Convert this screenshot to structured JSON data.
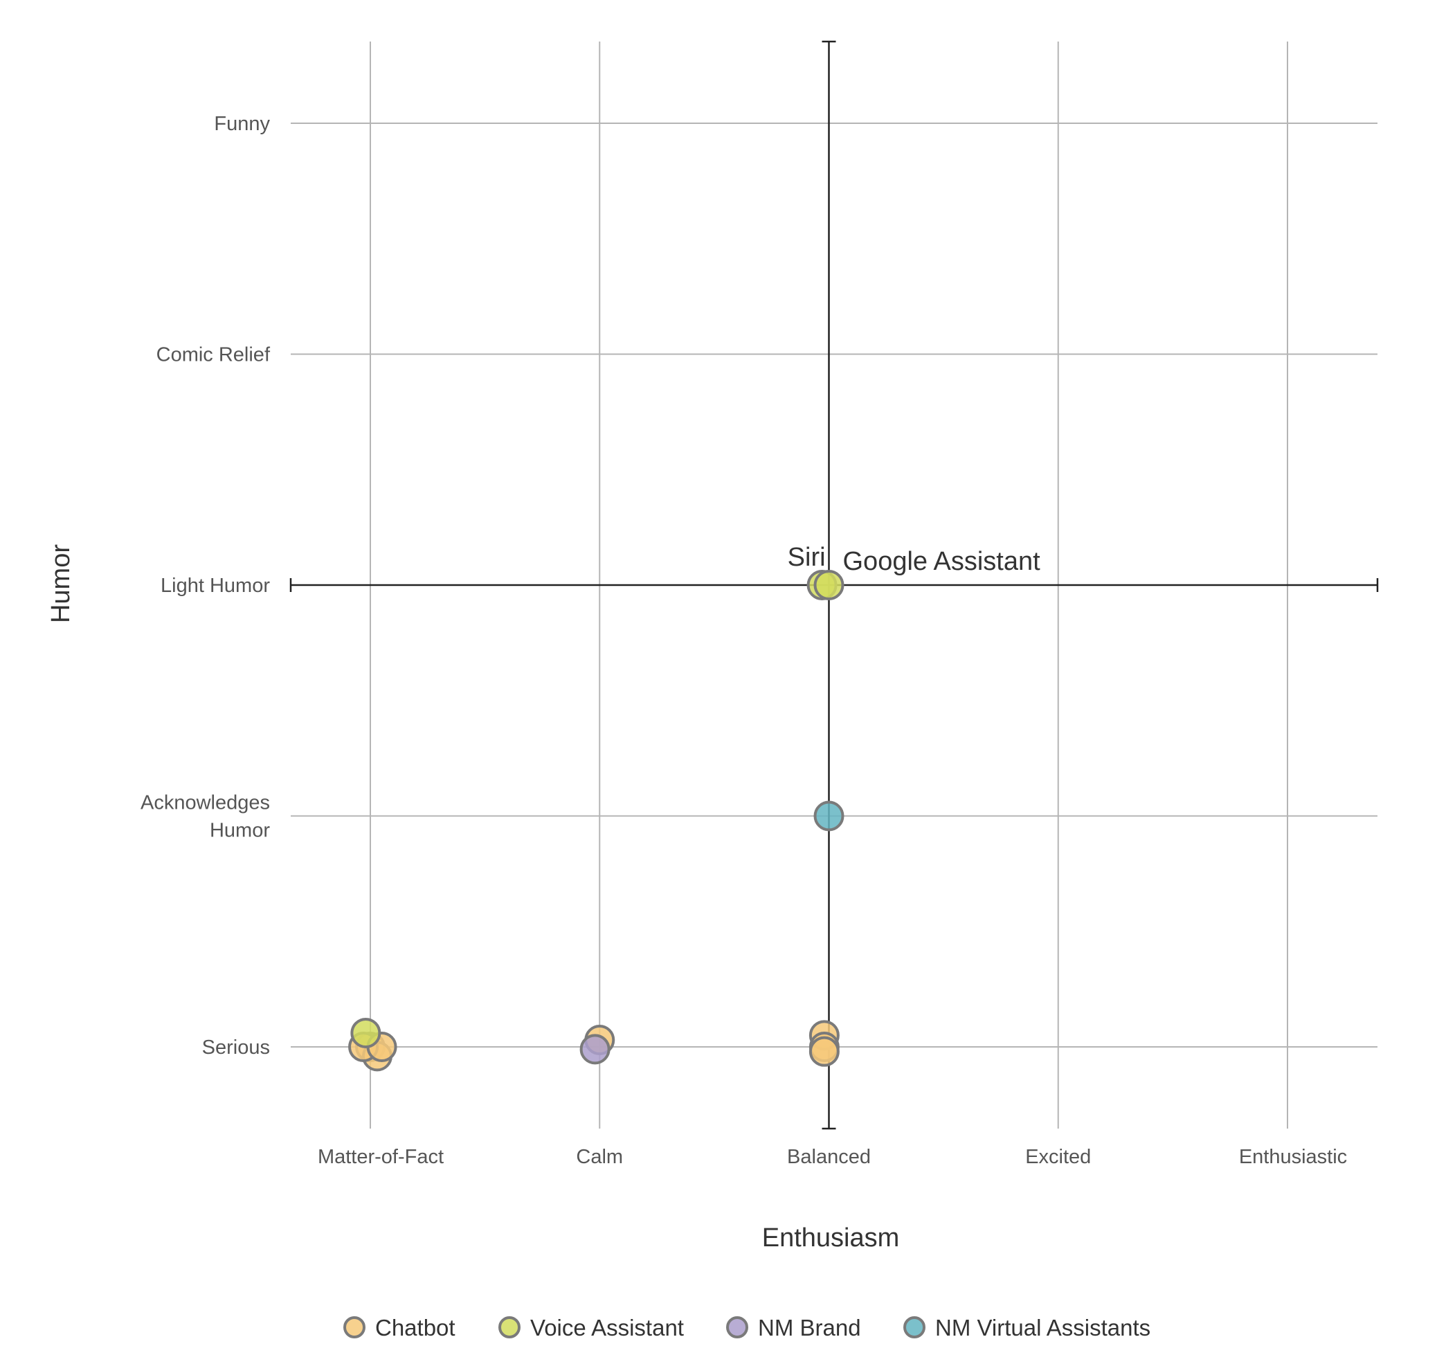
{
  "chart_data": {
    "type": "scatter",
    "xlabel": "Enthusiasm",
    "ylabel": "Humor",
    "x_categories": [
      "Matter-of-Fact",
      "Calm",
      "Balanced",
      "Excited",
      "Enthusiastic"
    ],
    "y_categories": [
      "Serious",
      "Acknowledges Humor",
      "Light Humor",
      "Comic Relief",
      "Funny"
    ],
    "y_category_lines": {
      "Acknowledges Humor": [
        "Acknowledges",
        "Humor"
      ]
    },
    "xlim": [
      1,
      5
    ],
    "ylim": [
      1,
      5
    ],
    "grid": true,
    "crosshair": {
      "x": "Balanced",
      "y": "Light Humor"
    },
    "legend_position": "bottom",
    "series": [
      {
        "name": "Chatbot",
        "color": "#f6c97a",
        "points": [
          {
            "x": 1.0,
            "y": 1.0
          },
          {
            "x": 1.03,
            "y": 0.96
          },
          {
            "x": 0.97,
            "y": 1.0
          },
          {
            "x": 1.05,
            "y": 1.0
          },
          {
            "x": 2.0,
            "y": 1.03
          },
          {
            "x": 2.98,
            "y": 1.05
          },
          {
            "x": 2.98,
            "y": 1.0
          },
          {
            "x": 2.98,
            "y": 0.98
          }
        ]
      },
      {
        "name": "Voice Assistant",
        "color": "#d2dc5e",
        "points": [
          {
            "x": 0.98,
            "y": 1.06,
            "label": ""
          },
          {
            "x": 2.97,
            "y": 3.0,
            "label": "Siri"
          },
          {
            "x": 3.0,
            "y": 3.0,
            "label": "Google Assistant"
          }
        ]
      },
      {
        "name": "NM Brand",
        "color": "#ab9fcc",
        "points": [
          {
            "x": 1.98,
            "y": 0.99
          }
        ]
      },
      {
        "name": "NM Virtual Assistants",
        "color": "#64b5c2",
        "points": [
          {
            "x": 3.0,
            "y": 2.0
          }
        ]
      }
    ]
  }
}
